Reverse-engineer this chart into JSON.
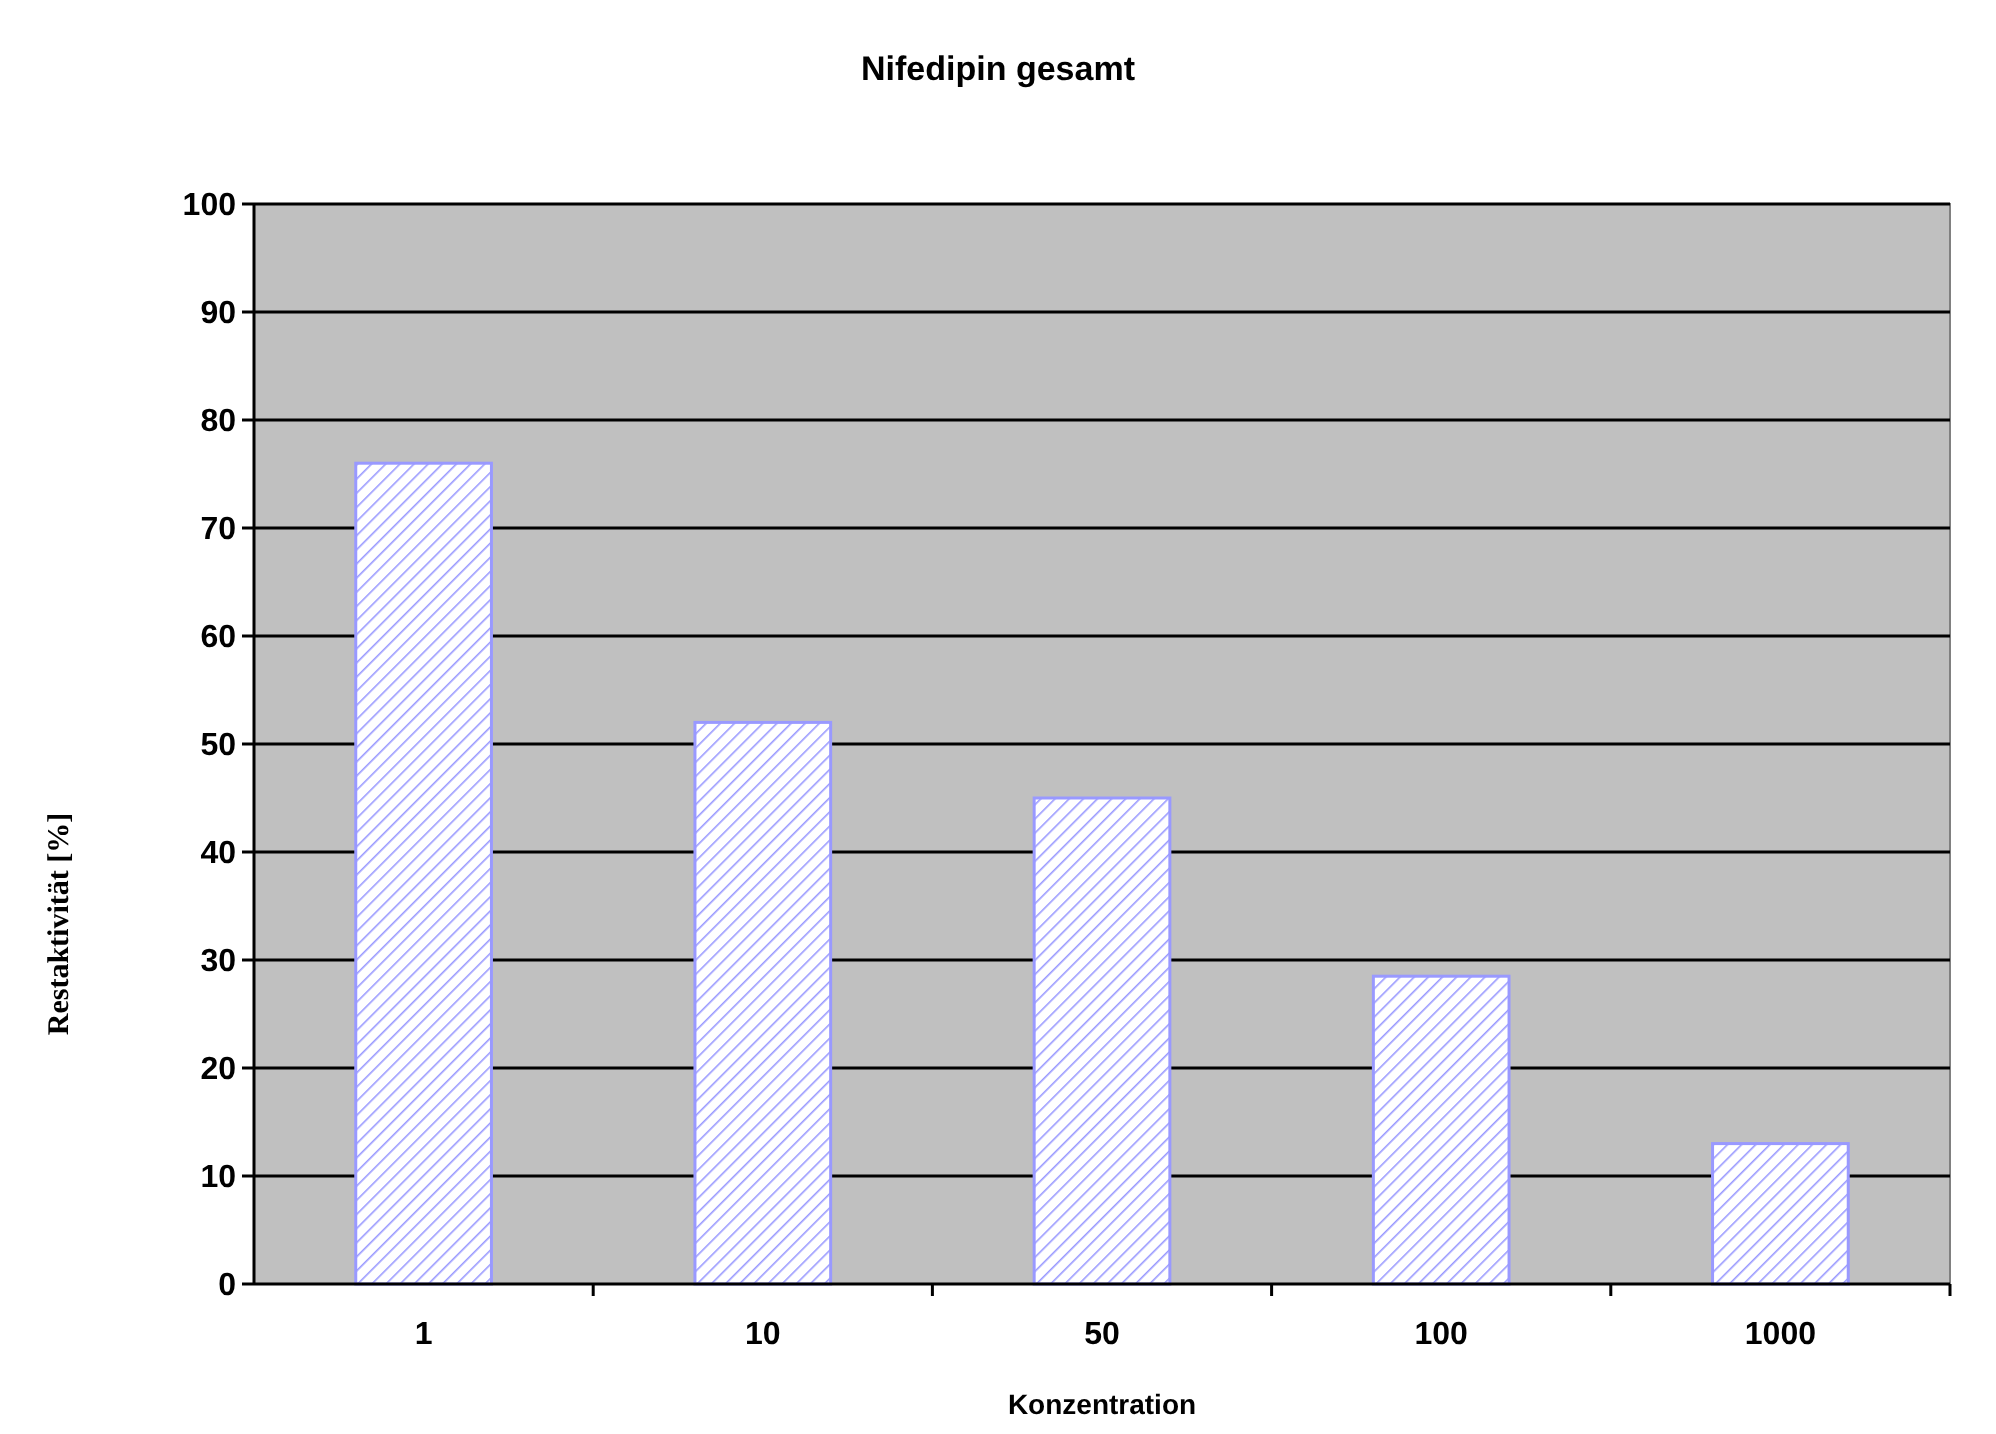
{
  "chart_data": {
    "type": "bar",
    "title": "Nifedipin gesamt",
    "xlabel": "Konzentration",
    "ylabel": "Restaktivität [%]",
    "categories": [
      "1",
      "10",
      "50",
      "100",
      "1000"
    ],
    "values": [
      76,
      52,
      45,
      28.5,
      13
    ],
    "color": "#9999ff",
    "ylim": [
      0,
      100
    ],
    "yticks": [
      0,
      10,
      20,
      30,
      40,
      50,
      60,
      70,
      80,
      90,
      100
    ],
    "grid": "y"
  }
}
